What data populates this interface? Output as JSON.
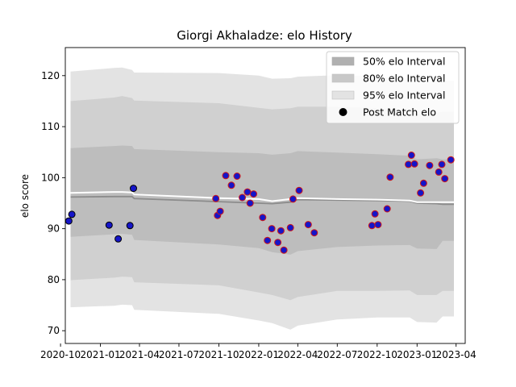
{
  "chart_data": {
    "type": "scatter",
    "title": "Giorgi Akhaladze: elo History",
    "xlabel": "",
    "ylabel": "elo score",
    "xlim": [
      "2020-10-12",
      "2023-04-22"
    ],
    "ylim": [
      67.5,
      125.5
    ],
    "yticks": [
      70,
      80,
      90,
      100,
      110,
      120
    ],
    "xticks": [
      {
        "date": "2020-10-01",
        "label": "2020-10"
      },
      {
        "date": "2021-01-01",
        "label": "2021-01"
      },
      {
        "date": "2021-04-01",
        "label": "2021-04"
      },
      {
        "date": "2021-07-01",
        "label": "2021-07"
      },
      {
        "date": "2021-10-01",
        "label": "2021-10"
      },
      {
        "date": "2022-01-01",
        "label": "2022-01"
      },
      {
        "date": "2022-04-01",
        "label": "2022-04"
      },
      {
        "date": "2022-07-01",
        "label": "2022-07"
      },
      {
        "date": "2022-10-01",
        "label": "2022-10"
      },
      {
        "date": "2023-01-01",
        "label": "2023-01"
      },
      {
        "date": "2023-04-01",
        "label": "2023-04"
      }
    ],
    "legend": {
      "placement": "top-right",
      "entries": [
        {
          "label": "50% elo Interval",
          "color": "#b0b0b0"
        },
        {
          "label": "80% elo Interval",
          "color": "#c8c8c8"
        },
        {
          "label": "95% elo Interval",
          "color": "#e3e3e3"
        },
        {
          "label": "Post Match elo",
          "color": "#000000"
        }
      ]
    },
    "colors": {
      "band95": "#e3e3e3",
      "band80": "#d0d0d0",
      "band50": "#bdbdbd",
      "mean_line": "#8c8c8c",
      "median_line": "#ffffff",
      "point_fill": "#1515c8",
      "point_edge_win": "#d01818",
      "point_edge_other": "#000000"
    },
    "bands": {
      "dates": [
        "2020-10-24",
        "2021-02-01",
        "2021-02-20",
        "2021-03-15",
        "2021-03-20",
        "2021-10-01",
        "2022-01-01",
        "2022-02-01",
        "2022-03-15",
        "2022-04-01",
        "2022-07-01",
        "2022-10-01",
        "2022-12-15",
        "2023-01-01",
        "2023-02-15",
        "2023-03-01",
        "2023-03-27"
      ],
      "p95_low": [
        74.6,
        74.9,
        75.1,
        75.0,
        74.1,
        73.3,
        72.0,
        71.5,
        70.2,
        71.0,
        72.2,
        72.6,
        72.6,
        71.7,
        71.6,
        72.8,
        72.8
      ],
      "p95_high": [
        120.8,
        121.5,
        121.6,
        121.1,
        120.6,
        120.5,
        120.0,
        119.4,
        119.5,
        119.8,
        120.1,
        119.8,
        119.4,
        118.8,
        118.8,
        119.0,
        119.0
      ],
      "p80_low": [
        79.9,
        80.4,
        80.6,
        80.5,
        79.5,
        78.9,
        77.5,
        77.0,
        76.0,
        76.6,
        77.8,
        77.8,
        77.9,
        77.0,
        77.0,
        77.8,
        77.8
      ],
      "p80_high": [
        115.0,
        115.7,
        116.0,
        115.6,
        115.1,
        114.6,
        113.7,
        113.4,
        113.6,
        113.9,
        113.9,
        113.6,
        113.4,
        112.5,
        112.7,
        112.9,
        112.9
      ],
      "p50_low": [
        88.4,
        88.9,
        89.0,
        88.8,
        87.8,
        86.9,
        86.2,
        85.4,
        84.9,
        85.6,
        86.4,
        86.7,
        86.8,
        86.1,
        86.0,
        87.6,
        87.6
      ],
      "p50_high": [
        105.8,
        106.2,
        106.3,
        106.2,
        105.6,
        105.0,
        104.8,
        104.5,
        104.8,
        105.2,
        104.9,
        104.6,
        104.3,
        103.6,
        103.8,
        103.6,
        103.6
      ],
      "mean": [
        96.2,
        96.3,
        96.3,
        96.3,
        95.9,
        95.3,
        95.0,
        94.9,
        95.2,
        95.7,
        95.6,
        95.5,
        95.4,
        95.0,
        94.9,
        94.8,
        94.8
      ],
      "median": [
        97.0,
        97.2,
        97.2,
        97.1,
        96.7,
        96.0,
        95.8,
        95.4,
        95.8,
        96.0,
        95.8,
        95.7,
        95.5,
        95.2,
        95.2,
        95.2,
        95.2
      ]
    },
    "points": [
      {
        "date": "2020-10-20",
        "elo": 91.5,
        "edge": "other"
      },
      {
        "date": "2020-10-27",
        "elo": 92.8,
        "edge": "other"
      },
      {
        "date": "2021-01-21",
        "elo": 90.7,
        "edge": "other"
      },
      {
        "date": "2021-02-11",
        "elo": 88.0,
        "edge": "other"
      },
      {
        "date": "2021-03-10",
        "elo": 90.6,
        "edge": "other"
      },
      {
        "date": "2021-03-18",
        "elo": 97.9,
        "edge": "other"
      },
      {
        "date": "2021-09-24",
        "elo": 95.9,
        "edge": "win"
      },
      {
        "date": "2021-09-28",
        "elo": 92.6,
        "edge": "win"
      },
      {
        "date": "2021-10-04",
        "elo": 93.4,
        "edge": "win"
      },
      {
        "date": "2021-10-17",
        "elo": 100.4,
        "edge": "win"
      },
      {
        "date": "2021-10-30",
        "elo": 98.5,
        "edge": "win"
      },
      {
        "date": "2021-11-12",
        "elo": 100.3,
        "edge": "win"
      },
      {
        "date": "2021-11-24",
        "elo": 96.1,
        "edge": "win"
      },
      {
        "date": "2021-12-06",
        "elo": 97.2,
        "edge": "win"
      },
      {
        "date": "2021-12-12",
        "elo": 95.0,
        "edge": "win"
      },
      {
        "date": "2021-12-20",
        "elo": 96.8,
        "edge": "win"
      },
      {
        "date": "2022-01-10",
        "elo": 92.2,
        "edge": "win"
      },
      {
        "date": "2022-01-21",
        "elo": 87.7,
        "edge": "win"
      },
      {
        "date": "2022-01-31",
        "elo": 90.0,
        "edge": "win"
      },
      {
        "date": "2022-02-14",
        "elo": 87.3,
        "edge": "win"
      },
      {
        "date": "2022-02-21",
        "elo": 89.6,
        "edge": "win"
      },
      {
        "date": "2022-02-28",
        "elo": 85.8,
        "edge": "win"
      },
      {
        "date": "2022-03-15",
        "elo": 90.2,
        "edge": "win"
      },
      {
        "date": "2022-03-21",
        "elo": 95.8,
        "edge": "win"
      },
      {
        "date": "2022-04-04",
        "elo": 97.5,
        "edge": "win"
      },
      {
        "date": "2022-04-25",
        "elo": 90.8,
        "edge": "win"
      },
      {
        "date": "2022-05-09",
        "elo": 89.2,
        "edge": "win"
      },
      {
        "date": "2022-09-19",
        "elo": 90.6,
        "edge": "win"
      },
      {
        "date": "2022-09-26",
        "elo": 92.9,
        "edge": "win"
      },
      {
        "date": "2022-10-03",
        "elo": 90.8,
        "edge": "win"
      },
      {
        "date": "2022-10-24",
        "elo": 93.9,
        "edge": "win"
      },
      {
        "date": "2022-10-31",
        "elo": 100.1,
        "edge": "win"
      },
      {
        "date": "2022-12-12",
        "elo": 102.6,
        "edge": "win"
      },
      {
        "date": "2022-12-19",
        "elo": 104.4,
        "edge": "win"
      },
      {
        "date": "2022-12-26",
        "elo": 102.7,
        "edge": "win"
      },
      {
        "date": "2023-01-09",
        "elo": 97.0,
        "edge": "win"
      },
      {
        "date": "2023-01-16",
        "elo": 98.9,
        "edge": "win"
      },
      {
        "date": "2023-01-30",
        "elo": 102.4,
        "edge": "win"
      },
      {
        "date": "2023-02-20",
        "elo": 101.1,
        "edge": "win"
      },
      {
        "date": "2023-02-27",
        "elo": 102.6,
        "edge": "win"
      },
      {
        "date": "2023-03-06",
        "elo": 99.8,
        "edge": "win"
      },
      {
        "date": "2023-03-20",
        "elo": 103.5,
        "edge": "win"
      }
    ]
  }
}
